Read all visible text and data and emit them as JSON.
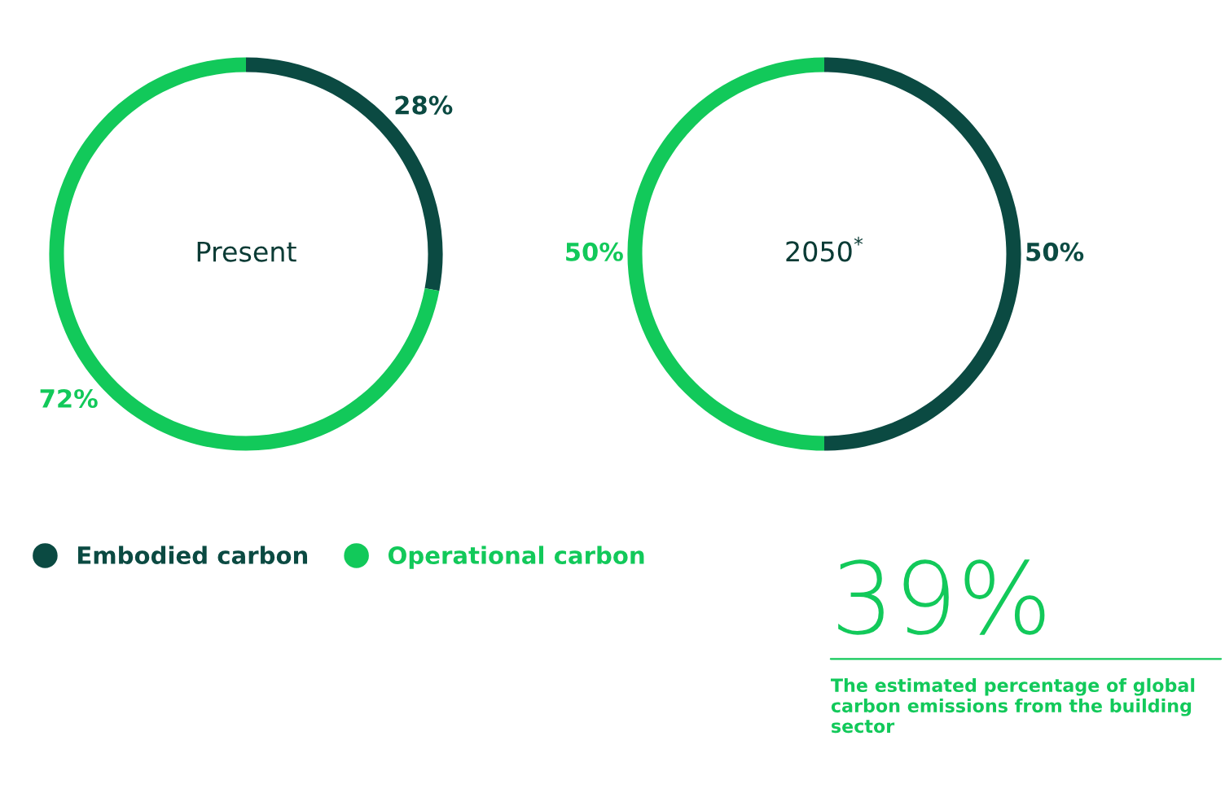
{
  "chart_data": [
    {
      "type": "donut",
      "title": "Present",
      "categories": [
        "Embodied carbon",
        "Operational carbon"
      ],
      "values": [
        28,
        72
      ],
      "colors": [
        "#0b4a42",
        "#12c95a"
      ],
      "value_labels": [
        "28%",
        "72%"
      ],
      "legend": "bottom"
    },
    {
      "type": "donut",
      "title": "2050$^{*}$",
      "categories": [
        null,
        null
      ],
      "values": [
        50,
        50
      ],
      "colors": [
        "#0b4a42",
        "#12c95a"
      ],
      "value_labels": [
        "50%",
        "50%"
      ]
    },
    {
      "type": "other",
      "annotations": [
        "39%",
        "The estimated percentage of global carbon emissions from the building sector"
      ]
    }
  ]
}
